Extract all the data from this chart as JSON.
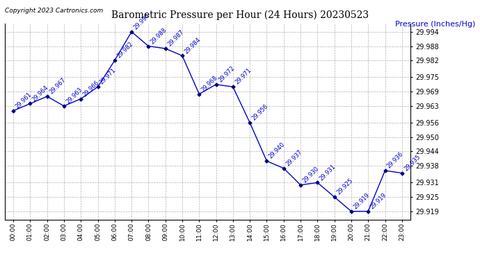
{
  "title": "Barometric Pressure per Hour (24 Hours) 20230523",
  "ylabel": "Pressure (Inches/Hg)",
  "copyright": "Copyright 2023 Cartronics.com",
  "hours": [
    "00:00",
    "01:00",
    "02:00",
    "03:00",
    "04:00",
    "05:00",
    "06:00",
    "07:00",
    "08:00",
    "09:00",
    "10:00",
    "11:00",
    "12:00",
    "13:00",
    "14:00",
    "15:00",
    "16:00",
    "17:00",
    "18:00",
    "19:00",
    "20:00",
    "21:00",
    "22:00",
    "23:00"
  ],
  "values": [
    29.961,
    29.964,
    29.967,
    29.963,
    29.966,
    29.971,
    29.982,
    29.994,
    29.988,
    29.987,
    29.984,
    29.968,
    29.972,
    29.971,
    29.956,
    29.94,
    29.937,
    29.93,
    29.931,
    29.925,
    29.919,
    29.919,
    29.936,
    29.935
  ],
  "line_color": "#0000cc",
  "marker_color": "#000080",
  "bg_color": "#ffffff",
  "grid_color": "#b0b0b0",
  "title_color": "#000000",
  "label_color": "#0000cc",
  "ylim_min": 29.9155,
  "ylim_max": 29.9975,
  "yticks": [
    29.919,
    29.925,
    29.931,
    29.938,
    29.944,
    29.95,
    29.956,
    29.963,
    29.969,
    29.975,
    29.982,
    29.988,
    29.994
  ]
}
